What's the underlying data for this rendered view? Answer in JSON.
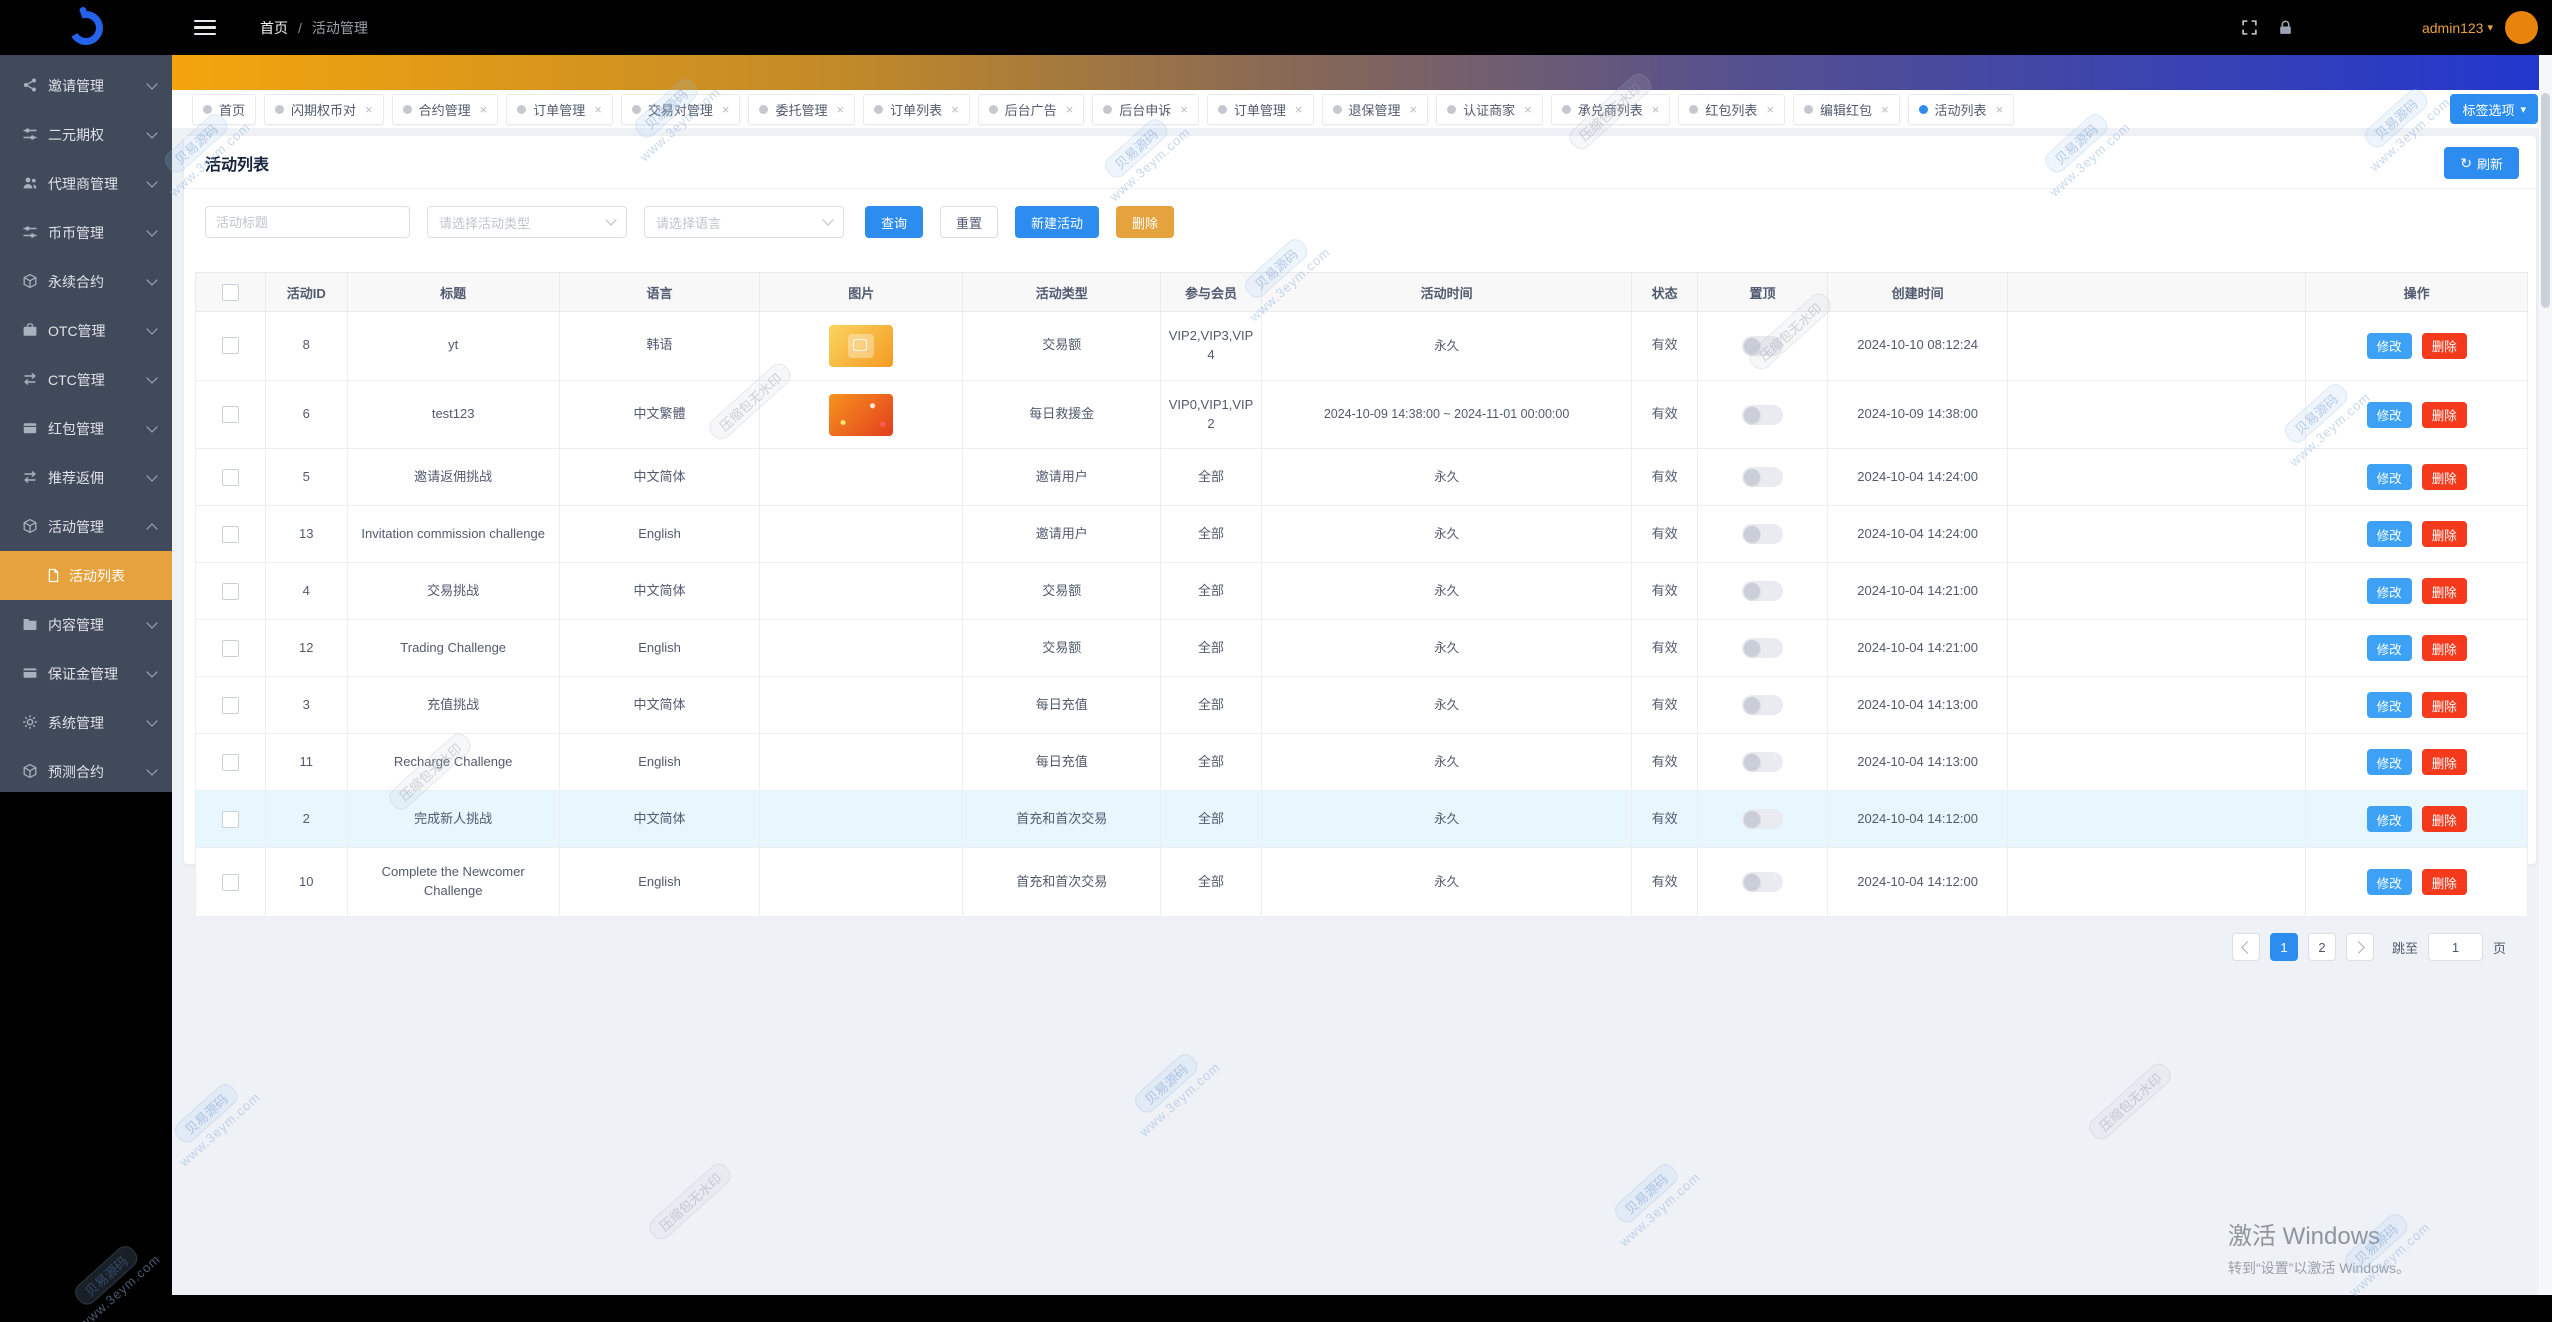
{
  "header": {
    "breadcrumb": [
      "首页",
      "活动管理"
    ],
    "breadcrumb_sep": "/",
    "username": "admin123"
  },
  "icons": {
    "refresh": "↻",
    "caret_down": "▾",
    "close": "×"
  },
  "sidebar": {
    "items": [
      {
        "label": "邀请管理",
        "icon": "share"
      },
      {
        "label": "二元期权",
        "icon": "sliders"
      },
      {
        "label": "代理商管理",
        "icon": "users"
      },
      {
        "label": "币币管理",
        "icon": "sliders"
      },
      {
        "label": "永续合约",
        "icon": "cube"
      },
      {
        "label": "OTC管理",
        "icon": "briefcase"
      },
      {
        "label": "CTC管理",
        "icon": "exchange"
      },
      {
        "label": "红包管理",
        "icon": "wallet"
      },
      {
        "label": "推荐返佣",
        "icon": "exchange"
      },
      {
        "label": "活动管理",
        "icon": "cube",
        "expanded": true,
        "children": [
          {
            "label": "活动列表",
            "icon": "doc",
            "active": true
          }
        ]
      },
      {
        "label": "内容管理",
        "icon": "folder"
      },
      {
        "label": "保证金管理",
        "icon": "card"
      },
      {
        "label": "系统管理",
        "icon": "gear"
      },
      {
        "label": "预测合约",
        "icon": "cube"
      }
    ]
  },
  "tabs": {
    "options_label": "标签选项",
    "items": [
      {
        "label": "首页",
        "closable": false
      },
      {
        "label": "闪期权币对"
      },
      {
        "label": "合约管理"
      },
      {
        "label": "订单管理"
      },
      {
        "label": "交易对管理"
      },
      {
        "label": "委托管理"
      },
      {
        "label": "订单列表"
      },
      {
        "label": "后台广告"
      },
      {
        "label": "后台申诉"
      },
      {
        "label": "订单管理"
      },
      {
        "label": "退保管理"
      },
      {
        "label": "认证商家"
      },
      {
        "label": "承兑商列表"
      },
      {
        "label": "红包列表"
      },
      {
        "label": "编辑红包"
      },
      {
        "label": "活动列表",
        "active": true
      }
    ]
  },
  "page": {
    "title": "活动列表",
    "refresh_label": "刷新"
  },
  "filters": {
    "title_placeholder": "活动标题",
    "type_placeholder": "请选择活动类型",
    "lang_placeholder": "请选择语言",
    "search": "查询",
    "reset": "重置",
    "create": "新建活动",
    "delete": "删除"
  },
  "table": {
    "columns": [
      "",
      "活动ID",
      "标题",
      "语言",
      "图片",
      "活动类型",
      "参与会员",
      "活动时间",
      "状态",
      "置顶",
      "创建时间",
      "",
      "操作"
    ],
    "actions": {
      "edit": "修改",
      "delete": "删除"
    },
    "rows": [
      {
        "id": "8",
        "title": "yt",
        "lang": "韩语",
        "image": {
          "from": "#fad55f",
          "to": "#f59a23",
          "variant": "card"
        },
        "type": "交易额",
        "members": "VIP2,VIP3,VIP4",
        "time": "永久",
        "status": "有效",
        "created": "2024-10-10 08:12:24"
      },
      {
        "id": "6",
        "title": "test123",
        "lang": "中文繁體",
        "image": {
          "from": "#f7931e",
          "to": "#e23e1d",
          "variant": "sparkle"
        },
        "type": "每日救援金",
        "members": "VIP0,VIP1,VIP2",
        "time": "2024-10-09 14:38:00 ~ 2024-11-01 00:00:00",
        "status": "有效",
        "created": "2024-10-09 14:38:00"
      },
      {
        "id": "5",
        "title": "邀请返佣挑战",
        "lang": "中文简体",
        "image": null,
        "type": "邀请用户",
        "members": "全部",
        "time": "永久",
        "status": "有效",
        "created": "2024-10-04 14:24:00"
      },
      {
        "id": "13",
        "title": "Invitation commission challenge",
        "lang": "English",
        "image": null,
        "type": "邀请用户",
        "members": "全部",
        "time": "永久",
        "status": "有效",
        "created": "2024-10-04 14:24:00"
      },
      {
        "id": "4",
        "title": "交易挑战",
        "lang": "中文简体",
        "image": null,
        "type": "交易额",
        "members": "全部",
        "time": "永久",
        "status": "有效",
        "created": "2024-10-04 14:21:00"
      },
      {
        "id": "12",
        "title": "Trading Challenge",
        "lang": "English",
        "image": null,
        "type": "交易额",
        "members": "全部",
        "time": "永久",
        "status": "有效",
        "created": "2024-10-04 14:21:00"
      },
      {
        "id": "3",
        "title": "充值挑战",
        "lang": "中文简体",
        "image": null,
        "type": "每日充值",
        "members": "全部",
        "time": "永久",
        "status": "有效",
        "created": "2024-10-04 14:13:00"
      },
      {
        "id": "11",
        "title": "Recharge Challenge",
        "lang": "English",
        "image": null,
        "type": "每日充值",
        "members": "全部",
        "time": "永久",
        "status": "有效",
        "created": "2024-10-04 14:13:00"
      },
      {
        "id": "2",
        "title": "完成新人挑战",
        "lang": "中文简体",
        "image": null,
        "type": "首充和首次交易",
        "members": "全部",
        "time": "永久",
        "status": "有效",
        "created": "2024-10-04 14:12:00",
        "highlighted": true
      },
      {
        "id": "10",
        "title": "Complete the Newcomer Challenge",
        "lang": "English",
        "image": null,
        "type": "首充和首次交易",
        "members": "全部",
        "time": "永久",
        "status": "有效",
        "created": "2024-10-04 14:12:00"
      }
    ]
  },
  "pagination": {
    "pages": [
      "1",
      "2"
    ],
    "current": "1",
    "jump_label": "跳至",
    "jump_value": "1",
    "unit_label": "页"
  },
  "watermark": {
    "line1": "贝易源码",
    "line2": "www.3eym.com",
    "alt": "压缩包无水印"
  },
  "activate": {
    "line1": "激活 Windows",
    "line2": "转到“设置”以激活 Windows。"
  },
  "colors": {
    "accent_blue": "#2d8cf0",
    "accent_gold": "#e6a23c",
    "danger_red": "#f4391c",
    "sidebar_bg": "#414a5b",
    "banner_from": "#f4a50c",
    "banner_to": "#2137cf",
    "row_highlight": "#e8f6fe"
  }
}
